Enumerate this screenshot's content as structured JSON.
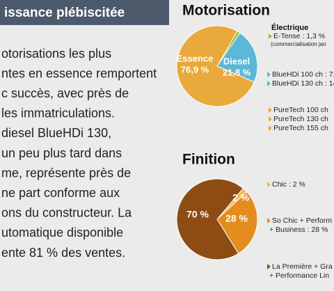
{
  "article": {
    "heading": "issance plébiscitée",
    "lines": [
      "otorisations les plus",
      "ntes en essence remportent",
      "c succès, avec près de",
      "les immatriculations.",
      "diesel BlueHDi 130,",
      "un peu plus tard dans",
      "me, représente près de",
      "ne part conforme aux",
      "ons du constructeur. La",
      "utomatique disponible",
      "ente 81 % des ventes."
    ]
  },
  "chart_data": [
    {
      "type": "pie",
      "title": "Motorisation",
      "categories": [
        "Essence",
        "Diesel",
        "Électrique"
      ],
      "values": [
        76.9,
        21.8,
        1.3
      ],
      "value_labels": [
        "76,9 %",
        "21,8 %",
        null
      ],
      "colors": [
        "#e9a93b",
        "#5db7d6",
        "#8dc63f"
      ],
      "annotations": [
        "E-Tense : 1,3 %",
        "(commercialisation jan",
        "BlueHDi 100 ch : 7,",
        "BlueHDi 130 ch : 14",
        "PureTech 100 ch",
        "PureTech 130 ch",
        "PureTech 155 ch"
      ]
    },
    {
      "type": "pie",
      "title": "Finition",
      "values": [
        70,
        28,
        2
      ],
      "value_labels": [
        "70 %",
        "28 %",
        "2 %"
      ],
      "colors": [
        "#8c4c14",
        "#e38d1f",
        "#f2b84e"
      ],
      "annotations": [
        "Chic : 2 %",
        "So Chic + Perform",
        "+ Business : 28 %",
        "La Première + Gra",
        "+ Performance Lin"
      ]
    }
  ]
}
